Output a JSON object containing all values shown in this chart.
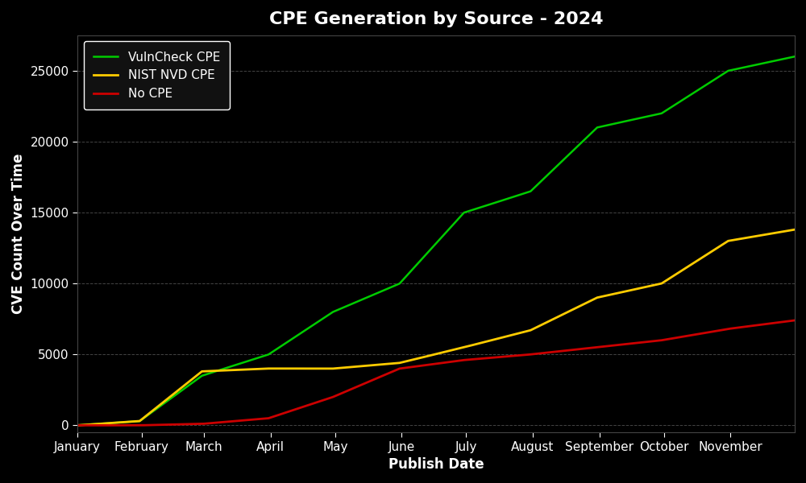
{
  "title": "CPE Generation by Source - 2024",
  "xlabel": "Publish Date",
  "ylabel": "CVE Count Over Time",
  "background_color": "#000000",
  "grid_color": "#555555",
  "text_color": "#ffffff",
  "title_fontsize": 16,
  "label_fontsize": 12,
  "tick_fontsize": 11,
  "legend_fontsize": 11,
  "x_labels": [
    "January",
    "February",
    "March",
    "April",
    "May",
    "June",
    "July",
    "August",
    "September",
    "October",
    "November"
  ],
  "ylim": [
    -500,
    27500
  ],
  "yticks": [
    0,
    5000,
    10000,
    15000,
    20000,
    25000
  ],
  "series": {
    "vulncheck": {
      "label": "VulnCheck CPE",
      "color": "#00cc00",
      "line_width": 1.8
    },
    "nist_nvd": {
      "label": "NIST NVD CPE",
      "color": "#ffcc00",
      "line_width": 2.0
    },
    "no_cpe": {
      "label": "No CPE",
      "color": "#cc0000",
      "line_width": 2.0
    }
  }
}
